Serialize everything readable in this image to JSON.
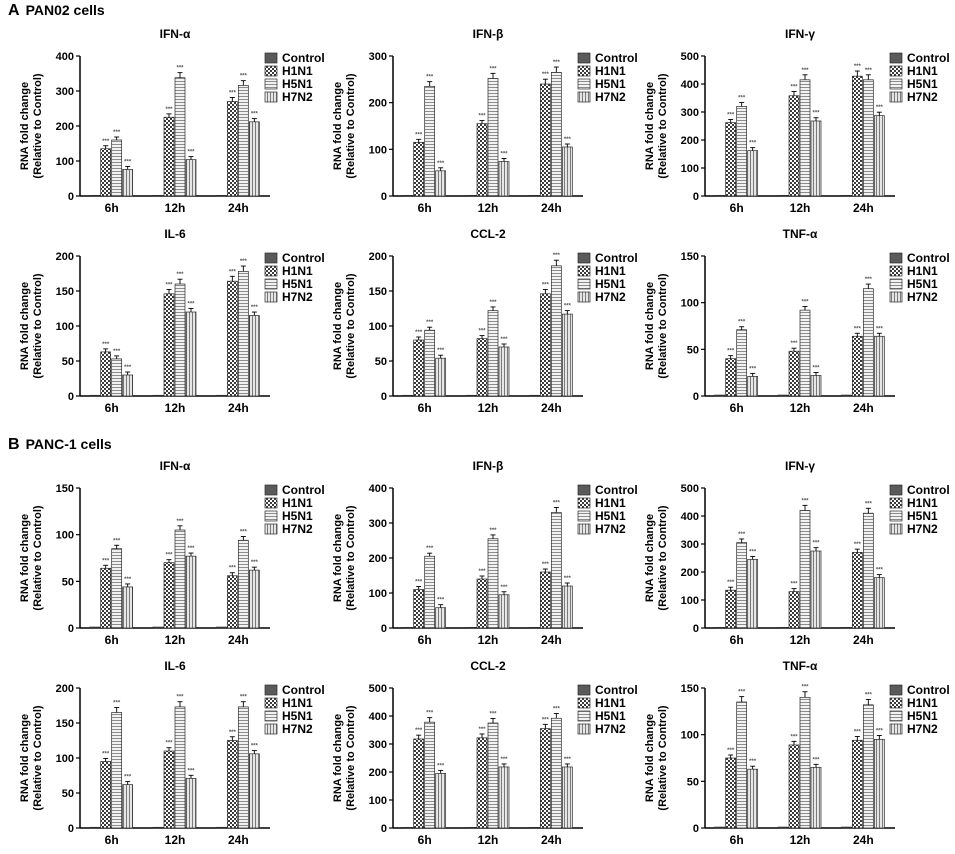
{
  "panels": [
    {
      "letter": "A",
      "title": "PAN02 cells"
    },
    {
      "letter": "B",
      "title": "PANC-1 cells"
    }
  ],
  "colors": {
    "control": "#5a5a5a",
    "h1n1": "#333333",
    "h5n1": "#c8c8c8",
    "h7n2": "#b4b4b4"
  },
  "chart_data": [
    {
      "type": "bar",
      "panel": "A",
      "title": "IFN-α",
      "ylabel": "RNA fold change",
      "ylabel2": "(Relative to Control)",
      "categories": [
        "6h",
        "12h",
        "24h"
      ],
      "ylim": [
        0,
        400
      ],
      "yticks": [
        "0",
        "100",
        "200",
        "300",
        "400"
      ],
      "sig": "***",
      "series": [
        {
          "name": "Control",
          "values": [
            1,
            1,
            1
          ]
        },
        {
          "name": "H1N1",
          "values": [
            135,
            225,
            270
          ]
        },
        {
          "name": "H5N1",
          "values": [
            160,
            338,
            316
          ]
        },
        {
          "name": "H7N2",
          "values": [
            76,
            104,
            212
          ]
        }
      ]
    },
    {
      "type": "bar",
      "panel": "A",
      "title": "IFN-β",
      "ylabel": "RNA fold change",
      "ylabel2": "(Relative to Control)",
      "categories": [
        "6h",
        "12h",
        "24h"
      ],
      "ylim": [
        0,
        300
      ],
      "yticks": [
        "0",
        "100",
        "200",
        "300"
      ],
      "sig": "***",
      "series": [
        {
          "name": "Control",
          "values": [
            1,
            1,
            1
          ]
        },
        {
          "name": "H1N1",
          "values": [
            115,
            155,
            240
          ]
        },
        {
          "name": "H5N1",
          "values": [
            235,
            252,
            265
          ]
        },
        {
          "name": "H7N2",
          "values": [
            54,
            74,
            105
          ]
        }
      ]
    },
    {
      "type": "bar",
      "panel": "A",
      "title": "IFN-γ",
      "ylabel": "RNA fold change",
      "ylabel2": "(Relative to Control)",
      "categories": [
        "6h",
        "12h",
        "24h"
      ],
      "ylim": [
        0,
        500
      ],
      "yticks": [
        "0",
        "100",
        "200",
        "300",
        "400",
        "500"
      ],
      "sig": "***",
      "series": [
        {
          "name": "Control",
          "values": [
            1,
            1,
            1
          ]
        },
        {
          "name": "H1N1",
          "values": [
            262,
            358,
            428
          ]
        },
        {
          "name": "H5N1",
          "values": [
            320,
            415,
            415
          ]
        },
        {
          "name": "H7N2",
          "values": [
            162,
            268,
            287
          ]
        }
      ]
    },
    {
      "type": "bar",
      "panel": "A",
      "title": "IL-6",
      "ylabel": "RNA fold change",
      "ylabel2": "(Relative to Control)",
      "categories": [
        "6h",
        "12h",
        "24h"
      ],
      "ylim": [
        0,
        200
      ],
      "yticks": [
        "0",
        "50",
        "100",
        "150",
        "200"
      ],
      "sig": "***",
      "series": [
        {
          "name": "Control",
          "values": [
            1,
            1,
            1
          ]
        },
        {
          "name": "H1N1",
          "values": [
            63,
            146,
            164
          ]
        },
        {
          "name": "H5N1",
          "values": [
            53,
            160,
            178
          ]
        },
        {
          "name": "H7N2",
          "values": [
            30,
            120,
            115
          ]
        }
      ]
    },
    {
      "type": "bar",
      "panel": "A",
      "title": "CCL-2",
      "ylabel": "RNA fold change",
      "ylabel2": "(Relative to Control)",
      "categories": [
        "6h",
        "12h",
        "24h"
      ],
      "ylim": [
        0,
        200
      ],
      "yticks": [
        "0",
        "50",
        "100",
        "150",
        "200"
      ],
      "sig": "***",
      "series": [
        {
          "name": "Control",
          "values": [
            1,
            1,
            1
          ]
        },
        {
          "name": "H1N1",
          "values": [
            80,
            82,
            146
          ]
        },
        {
          "name": "H5N1",
          "values": [
            94,
            122,
            186
          ]
        },
        {
          "name": "H7N2",
          "values": [
            54,
            70,
            117
          ]
        }
      ]
    },
    {
      "type": "bar",
      "panel": "A",
      "title": "TNF-α",
      "ylabel": "RNA fold change",
      "ylabel2": "(Relative to Control)",
      "categories": [
        "6h",
        "12h",
        "24h"
      ],
      "ylim": [
        0,
        150
      ],
      "yticks": [
        "0",
        "50",
        "100",
        "150"
      ],
      "sig": "***",
      "series": [
        {
          "name": "Control",
          "values": [
            1,
            1,
            1
          ]
        },
        {
          "name": "H1N1",
          "values": [
            40,
            48,
            64
          ]
        },
        {
          "name": "H5N1",
          "values": [
            71,
            92,
            115
          ]
        },
        {
          "name": "H7N2",
          "values": [
            21,
            22,
            64
          ]
        }
      ]
    },
    {
      "type": "bar",
      "panel": "B",
      "title": "IFN-α",
      "ylabel": "RNA fold change",
      "ylabel2": "(Relative to Control)",
      "categories": [
        "6h",
        "12h",
        "24h"
      ],
      "ylim": [
        0,
        150
      ],
      "yticks": [
        "0",
        "50",
        "100",
        "150"
      ],
      "sig": "***",
      "series": [
        {
          "name": "Control",
          "values": [
            1,
            1,
            1
          ]
        },
        {
          "name": "H1N1",
          "values": [
            64,
            70,
            56
          ]
        },
        {
          "name": "H5N1",
          "values": [
            85,
            105,
            94
          ]
        },
        {
          "name": "H7N2",
          "values": [
            44,
            77,
            62
          ]
        }
      ]
    },
    {
      "type": "bar",
      "panel": "B",
      "title": "IFN-β",
      "ylabel": "RNA fold change",
      "ylabel2": "(Relative to Control)",
      "categories": [
        "6h",
        "12h",
        "24h"
      ],
      "ylim": [
        0,
        400
      ],
      "yticks": [
        "0",
        "100",
        "200",
        "300",
        "400"
      ],
      "sig": "***",
      "series": [
        {
          "name": "Control",
          "values": [
            1,
            1,
            1
          ]
        },
        {
          "name": "H1N1",
          "values": [
            110,
            140,
            160
          ]
        },
        {
          "name": "H5N1",
          "values": [
            205,
            255,
            330
          ]
        },
        {
          "name": "H7N2",
          "values": [
            58,
            95,
            120
          ]
        }
      ]
    },
    {
      "type": "bar",
      "panel": "B",
      "title": "IFN-γ",
      "ylabel": "RNA fold change",
      "ylabel2": "(Relative to Control)",
      "categories": [
        "6h",
        "12h",
        "24h"
      ],
      "ylim": [
        0,
        500
      ],
      "yticks": [
        "0",
        "100",
        "200",
        "300",
        "400",
        "500"
      ],
      "sig": "***",
      "series": [
        {
          "name": "Control",
          "values": [
            1,
            1,
            1
          ]
        },
        {
          "name": "H1N1",
          "values": [
            135,
            130,
            270
          ]
        },
        {
          "name": "H5N1",
          "values": [
            305,
            420,
            410
          ]
        },
        {
          "name": "H7N2",
          "values": [
            245,
            275,
            180
          ]
        }
      ]
    },
    {
      "type": "bar",
      "panel": "B",
      "title": "IL-6",
      "ylabel": "RNA fold change",
      "ylabel2": "(Relative to Control)",
      "categories": [
        "6h",
        "12h",
        "24h"
      ],
      "ylim": [
        0,
        200
      ],
      "yticks": [
        "0",
        "50",
        "100",
        "150",
        "200"
      ],
      "sig": "***",
      "series": [
        {
          "name": "Control",
          "values": [
            1,
            1,
            1
          ]
        },
        {
          "name": "H1N1",
          "values": [
            95,
            110,
            125
          ]
        },
        {
          "name": "H5N1",
          "values": [
            165,
            173,
            173
          ]
        },
        {
          "name": "H7N2",
          "values": [
            62,
            71,
            106
          ]
        }
      ]
    },
    {
      "type": "bar",
      "panel": "B",
      "title": "CCL-2",
      "ylabel": "RNA fold change",
      "ylabel2": "(Relative to Control)",
      "categories": [
        "6h",
        "12h",
        "24h"
      ],
      "ylim": [
        0,
        500
      ],
      "yticks": [
        "0",
        "100",
        "200",
        "300",
        "400",
        "500"
      ],
      "sig": "***",
      "series": [
        {
          "name": "Control",
          "values": [
            1,
            1,
            1
          ]
        },
        {
          "name": "H1N1",
          "values": [
            318,
            322,
            355
          ]
        },
        {
          "name": "H5N1",
          "values": [
            378,
            375,
            392
          ]
        },
        {
          "name": "H7N2",
          "values": [
            195,
            218,
            218
          ]
        }
      ]
    },
    {
      "type": "bar",
      "panel": "B",
      "title": "TNF-α",
      "ylabel": "RNA fold change",
      "ylabel2": "(Relative to Control)",
      "categories": [
        "6h",
        "12h",
        "24h"
      ],
      "ylim": [
        0,
        150
      ],
      "yticks": [
        "0",
        "50",
        "100",
        "150"
      ],
      "sig": "***",
      "series": [
        {
          "name": "Control",
          "values": [
            1,
            1,
            1
          ]
        },
        {
          "name": "H1N1",
          "values": [
            75,
            89,
            94
          ]
        },
        {
          "name": "H5N1",
          "values": [
            135,
            140,
            132
          ]
        },
        {
          "name": "H7N2",
          "values": [
            63,
            65,
            95
          ]
        }
      ]
    }
  ]
}
